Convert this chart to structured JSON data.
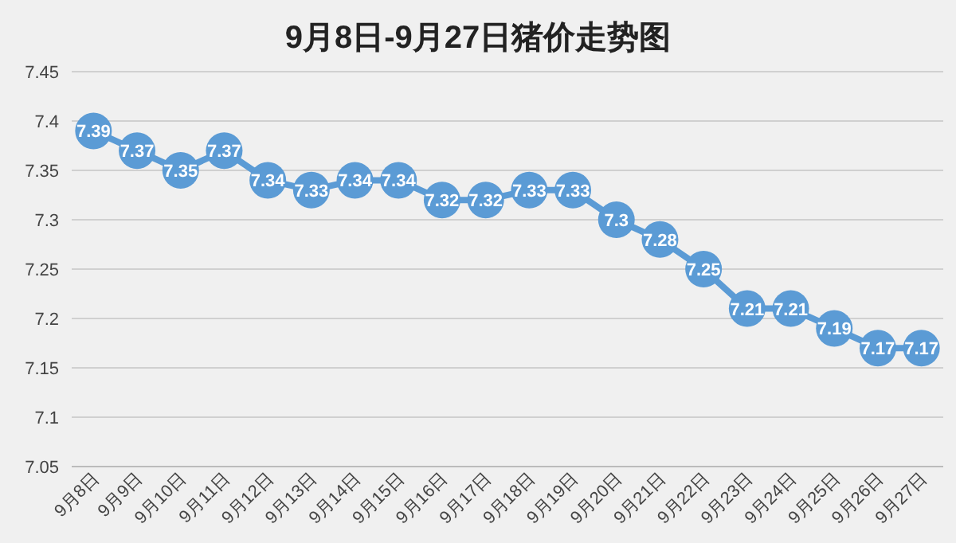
{
  "chart_data": {
    "type": "line",
    "title": "9月8日-9月27日猪价走势图",
    "categories": [
      "9月8日",
      "9月9日",
      "9月10日",
      "9月11日",
      "9月12日",
      "9月13日",
      "9月14日",
      "9月15日",
      "9月16日",
      "9月17日",
      "9月18日",
      "9月19日",
      "9月20日",
      "9月21日",
      "9月22日",
      "9月23日",
      "9月24日",
      "9月25日",
      "9月26日",
      "9月27日"
    ],
    "series": [
      {
        "color": "#5b9bd5",
        "values": [
          7.39,
          7.37,
          7.35,
          7.37,
          7.34,
          7.33,
          7.34,
          7.34,
          7.32,
          7.32,
          7.33,
          7.33,
          7.3,
          7.28,
          7.25,
          7.21,
          7.21,
          7.19,
          7.17,
          7.17
        ]
      }
    ],
    "ylim": [
      7.05,
      7.45
    ],
    "yticks": [
      7.05,
      7.1,
      7.15,
      7.2,
      7.25,
      7.3,
      7.35,
      7.4,
      7.45
    ],
    "grid": "y",
    "marker": "circle",
    "line_style": "solid",
    "data_labels": true
  }
}
